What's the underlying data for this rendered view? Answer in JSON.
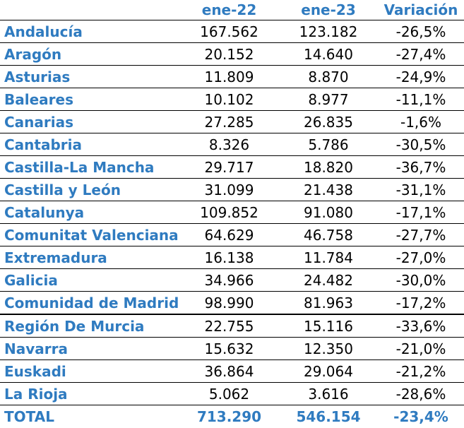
{
  "columns": [
    "ene-22",
    "ene-23",
    "Variación"
  ],
  "rows": [
    {
      "region": "Andalucía",
      "ene22": "167.562",
      "ene23": "123.182",
      "variacion": "-26,5%"
    },
    {
      "region": "Aragón",
      "ene22": "20.152",
      "ene23": "14.640",
      "variacion": "-27,4%"
    },
    {
      "region": "Asturias",
      "ene22": "11.809",
      "ene23": "8.870",
      "variacion": "-24,9%"
    },
    {
      "region": "Baleares",
      "ene22": "10.102",
      "ene23": "8.977",
      "variacion": "-11,1%"
    },
    {
      "region": "Canarias",
      "ene22": "27.285",
      "ene23": "26.835",
      "variacion": "-1,6%"
    },
    {
      "region": "Cantabria",
      "ene22": "8.326",
      "ene23": "5.786",
      "variacion": "-30,5%"
    },
    {
      "region": "Castilla-La Mancha",
      "ene22": "29.717",
      "ene23": "18.820",
      "variacion": "-36,7%"
    },
    {
      "region": "Castilla y León",
      "ene22": "31.099",
      "ene23": "21.438",
      "variacion": "-31,1%"
    },
    {
      "region": "Catalunya",
      "ene22": "109.852",
      "ene23": "91.080",
      "variacion": "-17,1%"
    },
    {
      "region": "Comunitat Valenciana",
      "ene22": "64.629",
      "ene23": "46.758",
      "variacion": "-27,7%"
    },
    {
      "region": "Extremadura",
      "ene22": "16.138",
      "ene23": "11.784",
      "variacion": "-27,0%"
    },
    {
      "region": "Galicia",
      "ene22": "34.966",
      "ene23": "24.482",
      "variacion": "-30,0%"
    },
    {
      "region": "Comunidad de Madrid",
      "ene22": "98.990",
      "ene23": "81.963",
      "variacion": "-17,2%"
    },
    {
      "region": "Región De Murcia",
      "ene22": "22.755",
      "ene23": "15.116",
      "variacion": "-33,6%"
    },
    {
      "region": "Navarra",
      "ene22": "15.632",
      "ene23": "12.350",
      "variacion": "-21,0%"
    },
    {
      "region": "Euskadi",
      "ene22": "36.864",
      "ene23": "29.064",
      "variacion": "-21,2%"
    },
    {
      "region": "La Rioja",
      "ene22": "5.062",
      "ene23": "3.616",
      "variacion": "-28,6%"
    }
  ],
  "total": {
    "label": "TOTAL",
    "ene22": "713.290",
    "ene23": "546.154",
    "variacion": "-23,4%"
  },
  "colors": {
    "accent": "#2f7bc0",
    "text": "#000000",
    "rule": "#000000"
  }
}
